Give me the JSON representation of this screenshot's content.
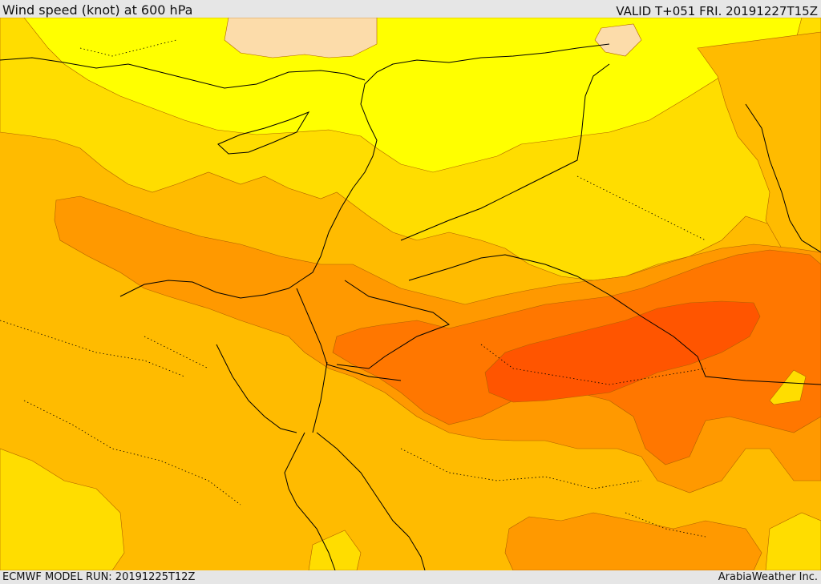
{
  "header": {
    "title": "Wind speed (knot) at 600 hPa",
    "valid": "VALID T+051 FRI. 20191227T15Z"
  },
  "footer": {
    "model_run": "ECMWF MODEL RUN: 20191225T12Z",
    "credit": "ArabiaWeather Inc."
  },
  "colors": {
    "calm": "#fcdcaa",
    "band_1": "#ffff00",
    "band_2": "#ffdd00",
    "band_3": "#ffbb00",
    "band_4": "#ff9900",
    "band_5": "#ff7700",
    "band_6": "#ff5500"
  }
}
